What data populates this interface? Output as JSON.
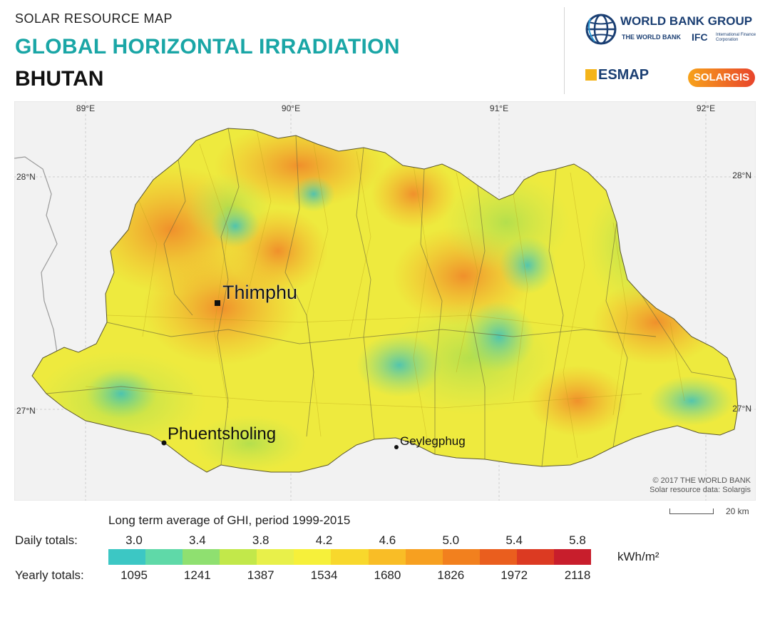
{
  "header": {
    "kicker": "SOLAR RESOURCE MAP",
    "title": "GLOBAL HORIZONTAL IRRADIATION",
    "country": "BHUTAN"
  },
  "logos": {
    "worldbank": "WORLD BANK GROUP",
    "worldbank_sub": "THE WORLD BANK",
    "ifc": "IFC",
    "ifc_sub": "International Finance Corporation",
    "esmap": "ESMAP",
    "solargis": "SOLARGIS"
  },
  "map": {
    "lon_labels": [
      "89°E",
      "90°E",
      "91°E",
      "92°E"
    ],
    "lat_labels": [
      "28°N",
      "27°N"
    ],
    "cities": {
      "capital": "Thimphu",
      "city1": "Phuentsholing",
      "city2": "Geylegphug"
    },
    "copyright": "© 2017 THE WORLD BANK",
    "data_source": "Solar resource data: Solargis",
    "scale": "20 km"
  },
  "legend": {
    "title": "Long term average of GHI, period 1999-2015",
    "daily_label": "Daily totals:",
    "yearly_label": "Yearly totals:",
    "daily_ticks": [
      "3.0",
      "3.4",
      "3.8",
      "4.2",
      "4.6",
      "5.0",
      "5.4",
      "5.8"
    ],
    "yearly_ticks": [
      "1095",
      "1241",
      "1387",
      "1534",
      "1680",
      "1826",
      "1972",
      "2118"
    ],
    "unit": "kWh/m²",
    "colors": [
      "#3cc7c4",
      "#5fd9a8",
      "#8fe070",
      "#c2e84a",
      "#e8f04a",
      "#f6f03a",
      "#f8d82c",
      "#f9bd26",
      "#f7a020",
      "#f2801e",
      "#ea5e1e",
      "#dc3a22",
      "#c81e2c"
    ]
  }
}
